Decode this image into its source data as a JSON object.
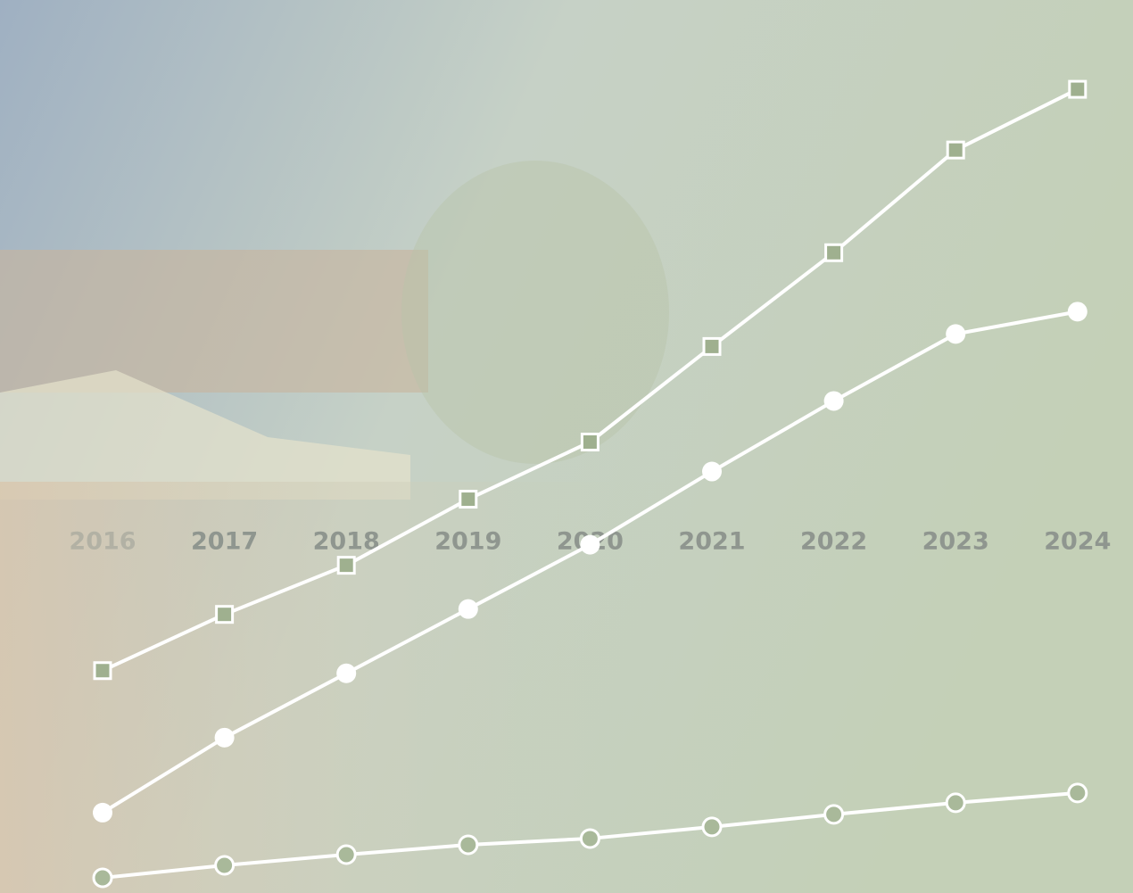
{
  "chart_data": {
    "type": "line",
    "categories": [
      "2016",
      "2017",
      "2018",
      "2019",
      "2020",
      "2021",
      "2022",
      "2023",
      "2024"
    ],
    "ylim": [
      0,
      100
    ],
    "series": [
      {
        "color": "#ffffff",
        "marker": "square",
        "values": [
          24.9,
          31.2,
          36.7,
          44.1,
          50.5,
          61.2,
          71.7,
          83.2,
          90.0
        ]
      },
      {
        "color": "#ffffff",
        "marker": "circle",
        "values": [
          9.0,
          17.4,
          24.6,
          31.8,
          39.0,
          47.2,
          55.1,
          62.6,
          65.1
        ]
      },
      {
        "color": "#ffffff",
        "marker": "circle-open",
        "values": [
          1.7,
          3.1,
          4.3,
          5.4,
          6.1,
          7.4,
          8.8,
          10.1,
          11.2
        ]
      }
    ]
  }
}
